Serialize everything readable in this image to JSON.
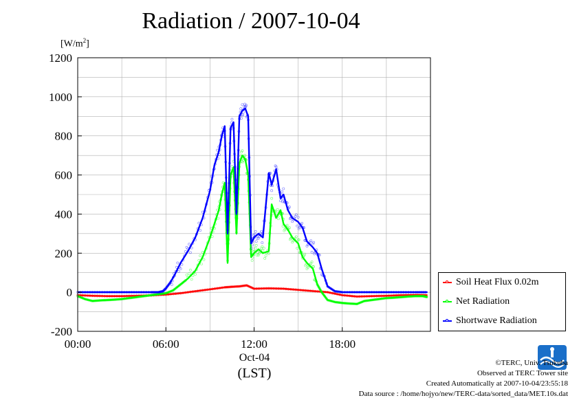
{
  "header": {
    "title": "Radiation / 2007-10-04",
    "unit_prefix": "[W/m",
    "unit_sup": "2",
    "unit_suffix": "]"
  },
  "x_axis": {
    "date_label": "Oct-04",
    "zone_label": "(LST)"
  },
  "legend": {
    "items": [
      {
        "label": "Soil Heat Flux 0.02m",
        "color": "#ff0000"
      },
      {
        "label": "Net Radiation",
        "color": "#00ff00"
      },
      {
        "label": "Shortwave Radiation",
        "color": "#0000ff"
      }
    ]
  },
  "credits": {
    "copyright": "©TERC, Univ. Tsukuba",
    "site": "Observed at TERC Tower site",
    "created": "Created Automatically at 2007-10-04/23:55:18",
    "source": "Data source : /home/hojyo/new/TERC-data/sorted_data/MET.10s.dat"
  },
  "logo": {
    "icon": "terc-logo-icon",
    "color": "#1a6fc9"
  },
  "chart_data": {
    "type": "line",
    "title": "Radiation / 2007-10-04",
    "ylabel": "[W/m2]",
    "xlabel": "Oct-04 (LST)",
    "xlim": [
      0,
      24
    ],
    "ylim": [
      -200,
      1200
    ],
    "x_ticks": [
      0,
      6,
      12,
      18
    ],
    "x_tick_labels": [
      "00:00",
      "06:00",
      "12:00",
      "18:00"
    ],
    "y_ticks": [
      -200,
      0,
      200,
      400,
      600,
      800,
      1000,
      1200
    ],
    "y_tick_labels": [
      "-200",
      "0",
      "200",
      "400",
      "600",
      "800",
      "1000",
      "1200"
    ],
    "grid": true,
    "legend_position": "right-bottom",
    "series": [
      {
        "name": "Soil Heat Flux 0.02m",
        "color": "#ff0000",
        "x": [
          0,
          1,
          2,
          3,
          4,
          5,
          6,
          7,
          8,
          9,
          10,
          10.5,
          11,
          11.5,
          12,
          13,
          14,
          15,
          16,
          17,
          18,
          19,
          20,
          21,
          22,
          23,
          23.8
        ],
        "y": [
          -15,
          -18,
          -20,
          -20,
          -18,
          -16,
          -12,
          -5,
          5,
          15,
          25,
          28,
          30,
          35,
          18,
          20,
          18,
          12,
          6,
          0,
          -15,
          -22,
          -20,
          -18,
          -15,
          -14,
          -15
        ]
      },
      {
        "name": "Net Radiation",
        "color": "#00ff00",
        "x": [
          0,
          0.5,
          1,
          1.5,
          2,
          2.5,
          3,
          3.5,
          4,
          4.5,
          5,
          5.5,
          6,
          6.5,
          7,
          7.5,
          8,
          8.5,
          9,
          9.3,
          9.6,
          9.8,
          10,
          10.2,
          10.4,
          10.6,
          10.8,
          11,
          11.2,
          11.4,
          11.6,
          11.8,
          12,
          12.3,
          12.6,
          13,
          13.2,
          13.5,
          13.8,
          14,
          14.3,
          14.6,
          15,
          15.3,
          15.6,
          16,
          16.3,
          16.6,
          17,
          17.5,
          18,
          18.5,
          19,
          19.5,
          20,
          20.5,
          21,
          21.5,
          22,
          22.5,
          23,
          23.5,
          23.8
        ],
        "y": [
          -20,
          -35,
          -45,
          -42,
          -40,
          -38,
          -35,
          -30,
          -25,
          -20,
          -15,
          -10,
          -5,
          10,
          40,
          70,
          110,
          180,
          280,
          350,
          420,
          500,
          560,
          150,
          600,
          640,
          300,
          660,
          700,
          680,
          600,
          180,
          200,
          220,
          200,
          210,
          450,
          380,
          420,
          350,
          320,
          280,
          250,
          180,
          150,
          120,
          40,
          0,
          -40,
          -50,
          -55,
          -58,
          -60,
          -45,
          -40,
          -35,
          -30,
          -28,
          -25,
          -22,
          -20,
          -20,
          -25
        ]
      },
      {
        "name": "Shortwave Radiation",
        "color": "#0000ff",
        "x": [
          0,
          1,
          2,
          3,
          4,
          5,
          5.5,
          5.8,
          6,
          6.3,
          6.6,
          7,
          7.5,
          8,
          8.5,
          9,
          9.3,
          9.6,
          9.8,
          10,
          10.2,
          10.4,
          10.6,
          10.8,
          11,
          11.2,
          11.4,
          11.6,
          11.8,
          12,
          12.3,
          12.6,
          13,
          13.2,
          13.5,
          13.8,
          14,
          14.3,
          14.6,
          15,
          15.3,
          15.6,
          16,
          16.3,
          16.6,
          17,
          17.5,
          18,
          19,
          20,
          21,
          22,
          23,
          23.8
        ],
        "y": [
          0,
          0,
          0,
          0,
          0,
          0,
          0,
          5,
          20,
          50,
          90,
          150,
          210,
          280,
          380,
          520,
          650,
          720,
          800,
          850,
          300,
          840,
          870,
          400,
          900,
          930,
          940,
          900,
          250,
          280,
          300,
          280,
          610,
          550,
          630,
          480,
          500,
          420,
          380,
          360,
          330,
          260,
          230,
          200,
          120,
          30,
          5,
          0,
          0,
          0,
          0,
          0,
          0,
          0
        ]
      }
    ]
  }
}
